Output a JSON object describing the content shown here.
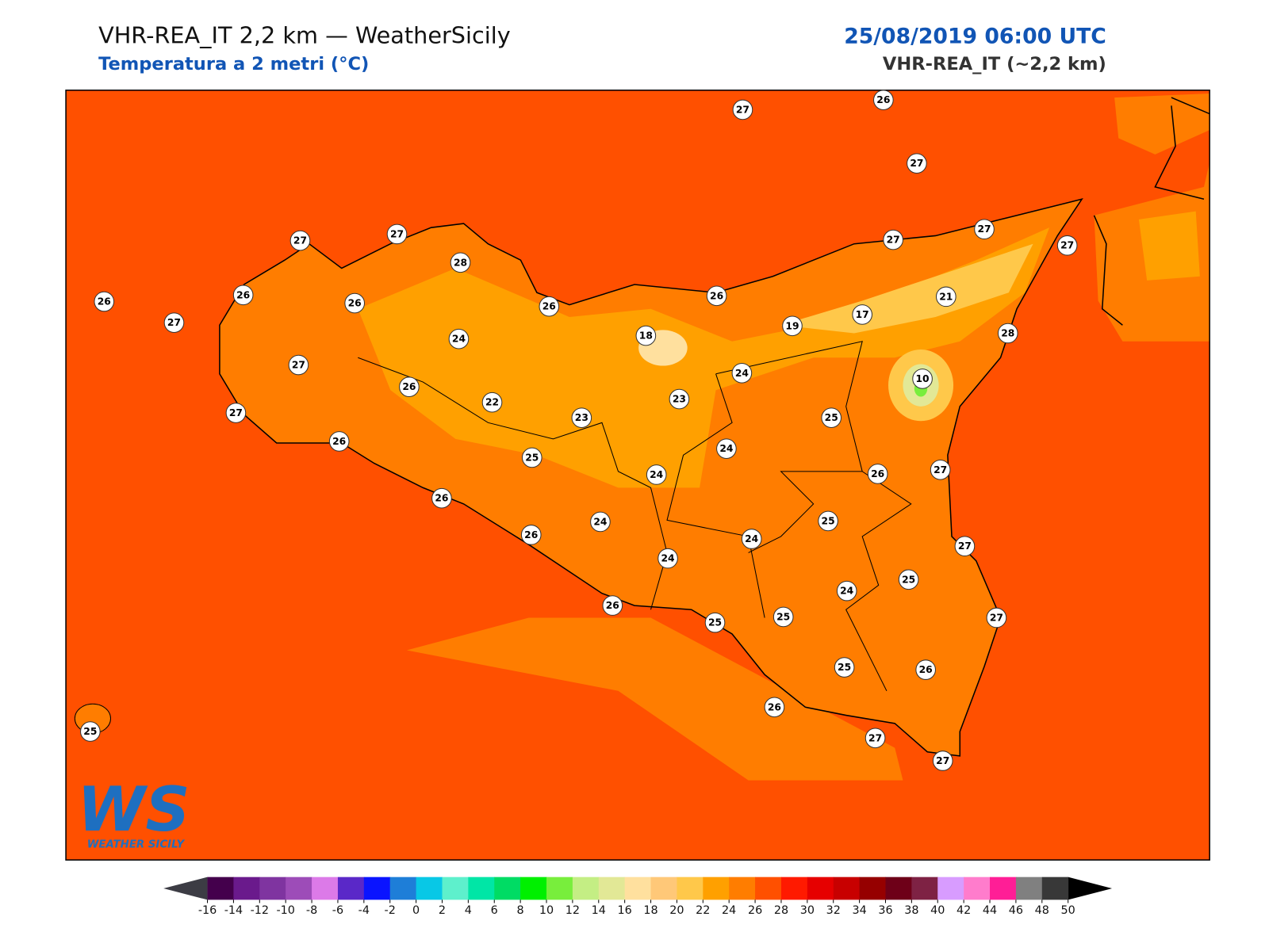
{
  "header": {
    "title": "VHR-REA_IT 2,2 km — WeatherSicily",
    "subtitle": "Temperatura a 2 metri (°C)",
    "date": "25/08/2019 06:00 UTC",
    "model": "VHR-REA_IT (~2,2 km)"
  },
  "logo": {
    "mark": "WS",
    "text": "WEATHER SICILY"
  },
  "stations": [
    27,
    26,
    27,
    27,
    27,
    28,
    26,
    26,
    27,
    26,
    26,
    26,
    27,
    27,
    27,
    21,
    17,
    19,
    28,
    24,
    18,
    27,
    10,
    24,
    26,
    22,
    23,
    23,
    27,
    25,
    26,
    25,
    24,
    24,
    26,
    27,
    26,
    24,
    25,
    26,
    24,
    24,
    27,
    25,
    24,
    26,
    25,
    25,
    27,
    25,
    26,
    26,
    25,
    27,
    27
  ],
  "colorbar": {
    "ticks": [
      -16,
      -14,
      -12,
      -10,
      -8,
      -6,
      -4,
      -2,
      0,
      2,
      4,
      6,
      8,
      10,
      12,
      14,
      16,
      18,
      20,
      22,
      24,
      26,
      28,
      30,
      32,
      34,
      36,
      38,
      40,
      42,
      44,
      46,
      48,
      50
    ],
    "colors": [
      "#44004c",
      "#6a1a8c",
      "#7f34a0",
      "#9d4cb8",
      "#dc7ae8",
      "#5a28c8",
      "#0a14ff",
      "#1e7ed8",
      "#08c8e6",
      "#5ef0cc",
      "#00e6a6",
      "#00dc64",
      "#00f000",
      "#78ee3c",
      "#c4ee84",
      "#e2e896",
      "#ffe09e",
      "#ffc878",
      "#ffc84a",
      "#ffa000",
      "#ff7d00",
      "#ff5000",
      "#ff1a00",
      "#e60000",
      "#c80000",
      "#960000",
      "#6e0018",
      "#7e2244",
      "#d89cff",
      "#ff7ccc",
      "#ff1e96",
      "#808080",
      "#383838"
    ],
    "under_color": "#3c3c44",
    "over_color": "#000000"
  }
}
